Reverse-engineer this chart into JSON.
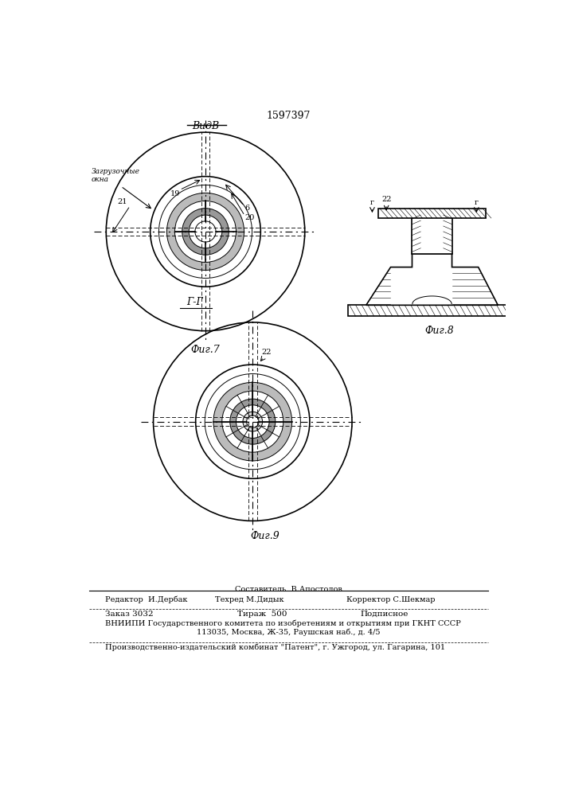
{
  "patent_number": "1597397",
  "fig7_label": "Фиг.7",
  "fig8_label": "Фиг.8",
  "fig9_label": "Фиг.9",
  "view_label": "ВидВ",
  "section_label": "Г-Г",
  "footer": {
    "sostavitel": "Составитель  В.Апостолов",
    "redaktor": "Редактор  И.Дербак",
    "tekhred": "Техред М.Дидык",
    "korrektor": "Корректор С.Шекмар",
    "zakaz": "Заказ 3032",
    "tirazh": "Тираж  500",
    "podpisnoe": "Подписное",
    "vnipi": "ВНИИПИ Государственного комитета по изобретениям и открытиям при ГКНТ СССР",
    "address": "113035, Москва, Ж-35, Раушская наб., д. 4/5",
    "proizv": "Производственно-издательский комбинат \"Патент\", г. Ужгород, ул. Гагарина, 101"
  },
  "background": "#ffffff",
  "line_color": "#000000"
}
